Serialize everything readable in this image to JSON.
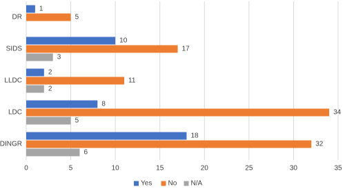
{
  "chart_data": {
    "type": "hbar",
    "categories": [
      "DR",
      "SIDS",
      "LLDC",
      "LDC",
      "DINGR"
    ],
    "series": [
      {
        "name": "Yes",
        "color": "#4472c4",
        "values": [
          1,
          10,
          2,
          8,
          18
        ]
      },
      {
        "name": "No",
        "color": "#ed7d31",
        "values": [
          5,
          17,
          11,
          34,
          32
        ]
      },
      {
        "name": "N/A",
        "color": "#a5a5a5",
        "values": [
          null,
          3,
          2,
          5,
          6
        ]
      }
    ],
    "xlim": [
      0,
      35
    ],
    "xticks": [
      0,
      5,
      10,
      15,
      20,
      25,
      30,
      35
    ],
    "grid": true,
    "legend": "bottom"
  }
}
